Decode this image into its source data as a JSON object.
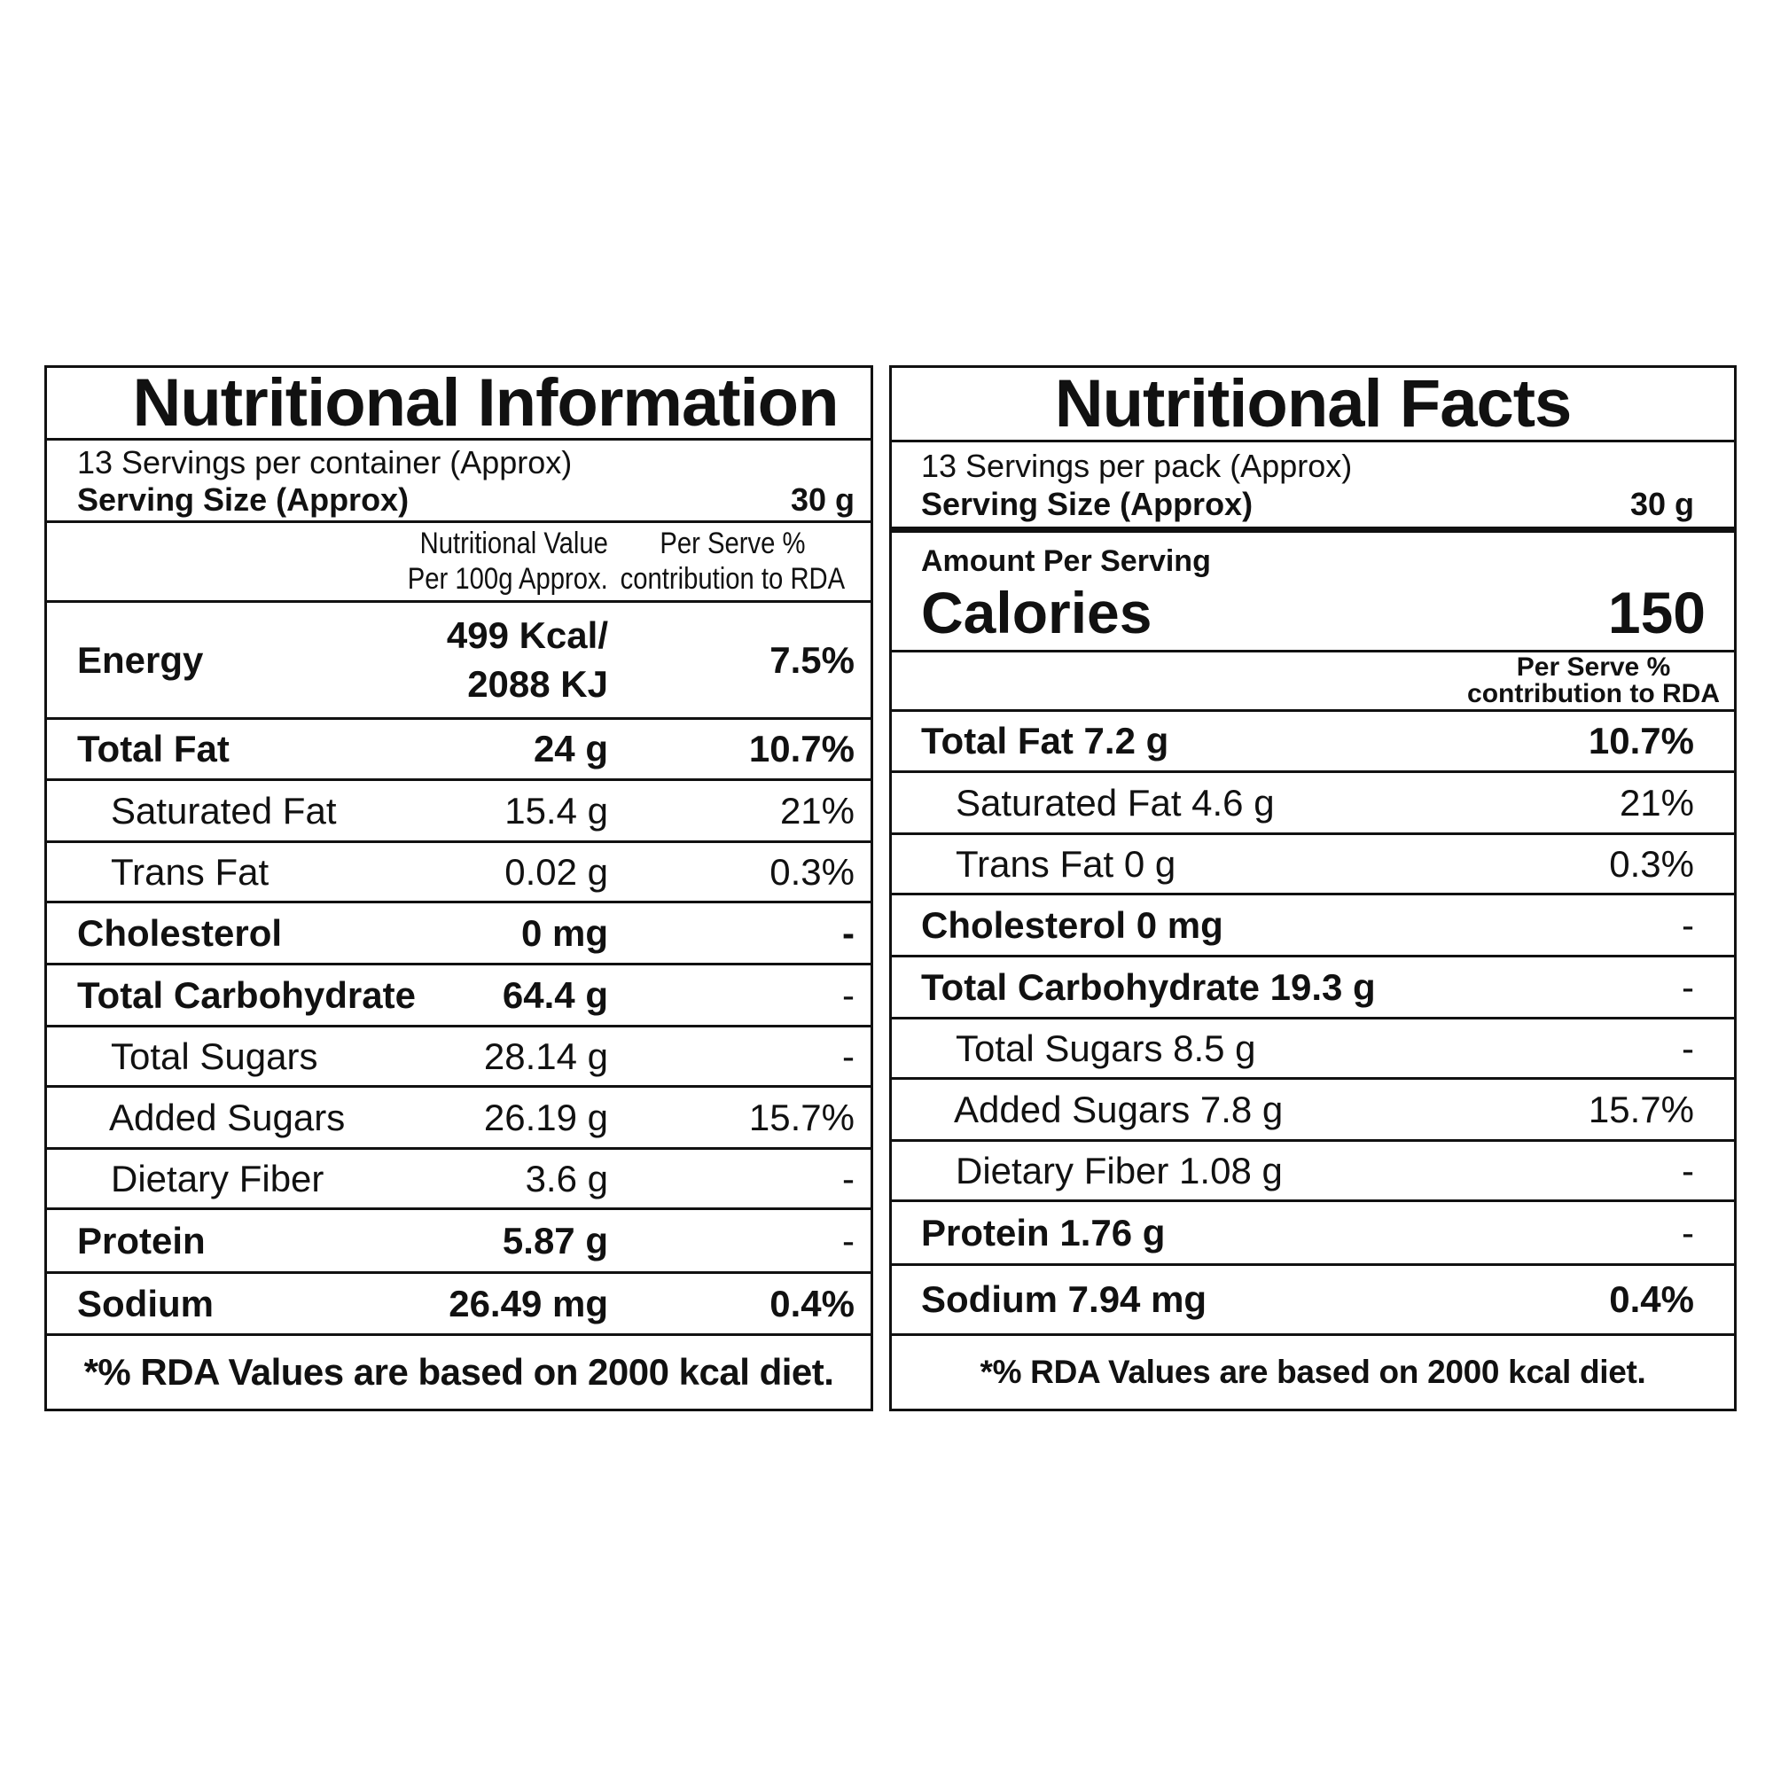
{
  "left": {
    "title": "Nutritional Information",
    "servings_line": "13 Servings per container (Approx)",
    "serving_size_label": "Serving Size (Approx)",
    "serving_size_value": "30 g",
    "header_value_line1": "Nutritional Value",
    "header_value_line2": "Per 100g Approx.",
    "header_pct_line1": "Per Serve %",
    "header_pct_line2": "contribution to RDA",
    "energy": {
      "name": "Energy",
      "value_line1": "499 Kcal/",
      "value_line2": "2088 KJ",
      "pct": "7.5%"
    },
    "rows": [
      {
        "name": "Total Fat",
        "value": "24 g",
        "pct": "10.7%"
      },
      {
        "name": "Saturated Fat",
        "value": "15.4 g",
        "pct": "21%"
      },
      {
        "name": "Trans Fat",
        "value": "0.02 g",
        "pct": "0.3%"
      },
      {
        "name": "Cholesterol",
        "value": "0 mg",
        "pct": "-"
      },
      {
        "name": "Total Carbohydrate",
        "value": "64.4 g",
        "pct": "-"
      },
      {
        "name": "Total Sugars",
        "value": "28.14 g",
        "pct": "-"
      },
      {
        "name": "Added Sugars",
        "value": "26.19 g",
        "pct": "15.7%"
      },
      {
        "name": "Dietary Fiber",
        "value": "3.6 g",
        "pct": "-"
      },
      {
        "name": "Protein",
        "value": "5.87 g",
        "pct": "-"
      },
      {
        "name": "Sodium",
        "value": "26.49 mg",
        "pct": "0.4%"
      }
    ],
    "footnote": "*% RDA Values are based on 2000 kcal diet."
  },
  "right": {
    "title": "Nutritional Facts",
    "servings_line": "13 Servings per pack (Approx)",
    "serving_size_label": "Serving Size (Approx)",
    "serving_size_value": "30 g",
    "amount_per_serving": "Amount Per Serving",
    "calories_label": "Calories",
    "calories_value": "150",
    "header_pct_line1": "Per Serve %",
    "header_pct_line2": "contribution to RDA",
    "rows": [
      {
        "name": "Total Fat 7.2 g",
        "pct": "10.7%"
      },
      {
        "name": "Saturated Fat 4.6 g",
        "pct": "21%"
      },
      {
        "name": "Trans Fat 0 g",
        "pct": "0.3%"
      },
      {
        "name": "Cholesterol 0 mg",
        "pct": "-"
      },
      {
        "name": "Total Carbohydrate 19.3 g",
        "pct": "-"
      },
      {
        "name": "Total Sugars 8.5 g",
        "pct": "-"
      },
      {
        "name": "Added Sugars 7.8 g",
        "pct": "15.7%"
      },
      {
        "name": "Dietary Fiber 1.08 g",
        "pct": "-"
      },
      {
        "name": "Protein 1.76 g",
        "pct": "-"
      },
      {
        "name": "Sodium 7.94 mg",
        "pct": "0.4%"
      }
    ],
    "footnote": "*% RDA Values are based on 2000 kcal diet."
  }
}
